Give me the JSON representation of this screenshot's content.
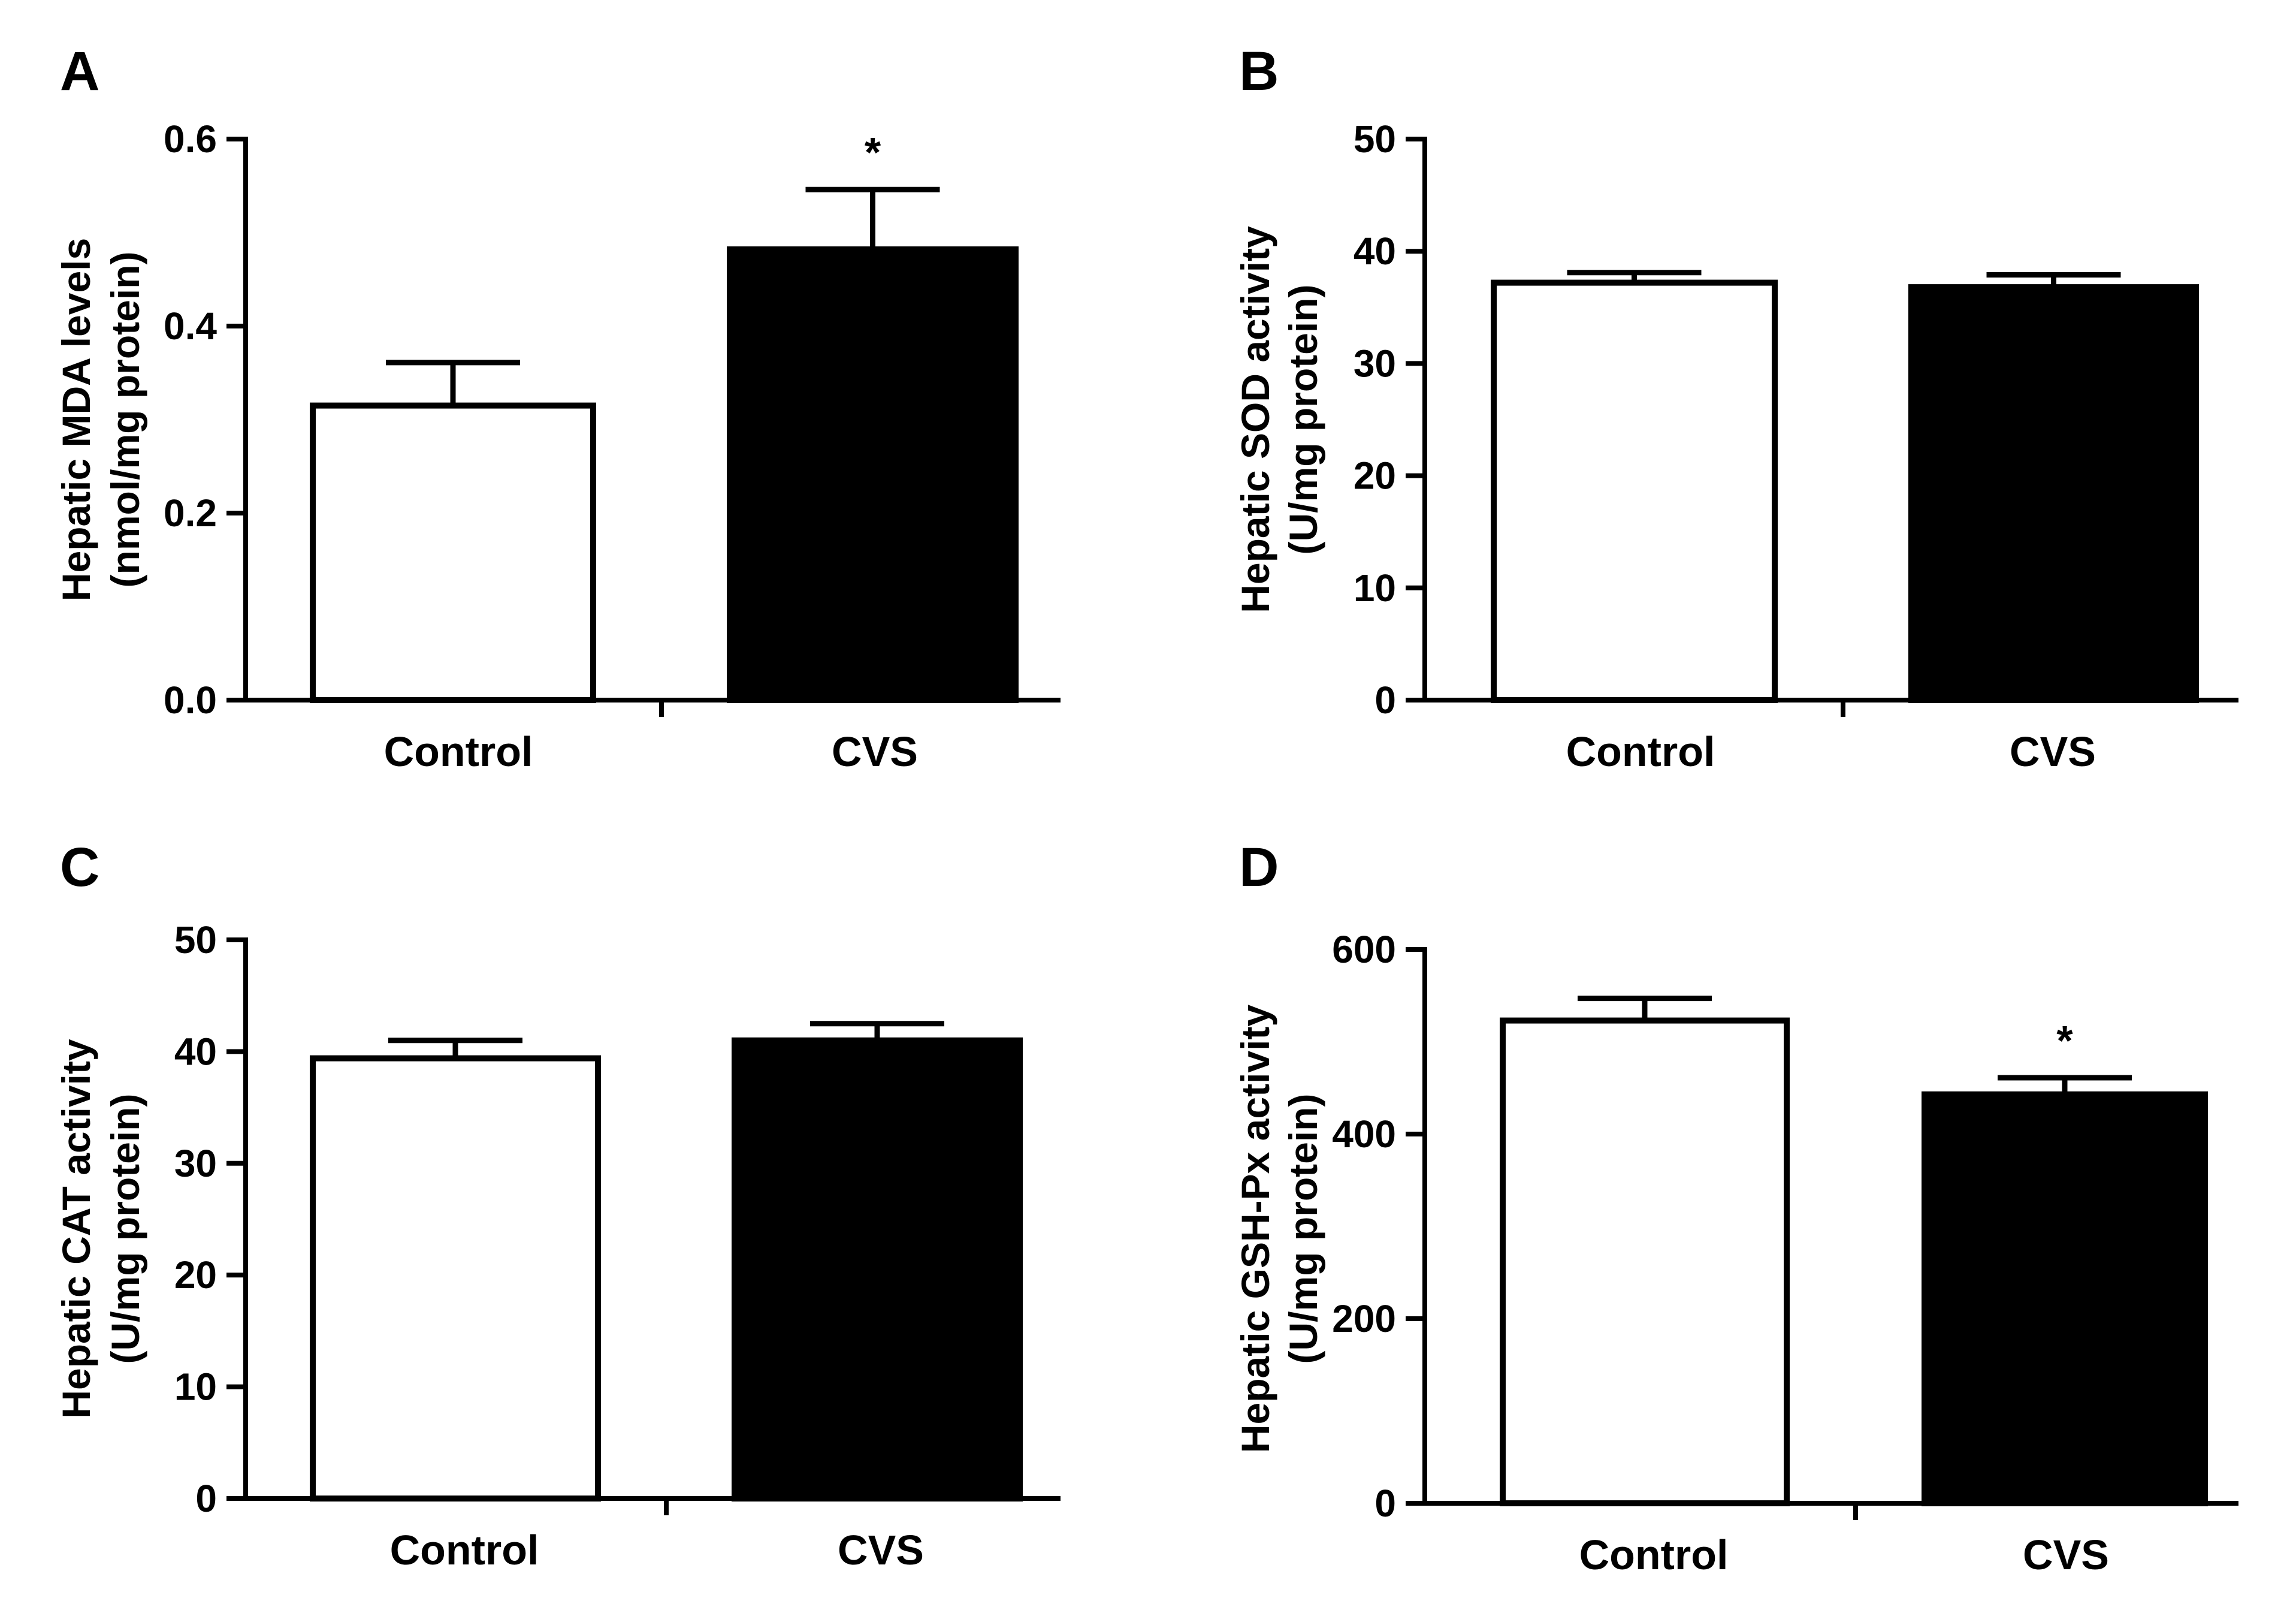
{
  "figure": {
    "colors": {
      "control_fill": "#ffffff",
      "cvs_fill": "#000000",
      "stroke": "#000000"
    }
  },
  "chart_data": [
    {
      "panel": "A",
      "type": "bar",
      "categories": [
        "Control",
        "CVS"
      ],
      "values": [
        0.315,
        0.482
      ],
      "errors": [
        0.046,
        0.064
      ],
      "significance": [
        "",
        "*"
      ],
      "ylabel_lines": [
        "Hepatic MDA levels",
        "(nmol/mg protein)"
      ],
      "ylim": [
        0,
        0.6
      ],
      "yticks": [
        0.0,
        0.2,
        0.4,
        0.6
      ],
      "ytick_labels": [
        "0.0",
        "0.2",
        "0.4",
        "0.6"
      ]
    },
    {
      "panel": "B",
      "type": "bar",
      "categories": [
        "Control",
        "CVS"
      ],
      "values": [
        37.2,
        36.8
      ],
      "errors": [
        0.9,
        1.1
      ],
      "significance": [
        "",
        ""
      ],
      "ylabel_lines": [
        "Hepatic SOD activity",
        "(U/mg protein)"
      ],
      "ylim": [
        0,
        50
      ],
      "yticks": [
        0,
        10,
        20,
        30,
        40,
        50
      ],
      "ytick_labels": [
        "0",
        "10",
        "20",
        "30",
        "40",
        "50"
      ]
    },
    {
      "panel": "C",
      "type": "bar",
      "categories": [
        "Control",
        "CVS"
      ],
      "values": [
        39.4,
        41.0
      ],
      "errors": [
        1.6,
        1.5
      ],
      "significance": [
        "",
        ""
      ],
      "ylabel_lines": [
        "Hepatic CAT activity",
        "(U/mg protein)"
      ],
      "ylim": [
        0,
        50
      ],
      "yticks": [
        0,
        10,
        20,
        30,
        40,
        50
      ],
      "ytick_labels": [
        "0",
        "10",
        "20",
        "30",
        "40",
        "50"
      ]
    },
    {
      "panel": "D",
      "type": "bar",
      "categories": [
        "Control",
        "CVS"
      ],
      "values": [
        523,
        443
      ],
      "errors": [
        24,
        18
      ],
      "significance": [
        "",
        "*"
      ],
      "ylabel_lines": [
        "Hepatic GSH-Px activity",
        "(U/mg protein)"
      ],
      "ylim": [
        0,
        600
      ],
      "yticks": [
        0,
        200,
        400,
        600
      ],
      "ytick_labels": [
        "0",
        "200",
        "400",
        "600"
      ]
    }
  ]
}
